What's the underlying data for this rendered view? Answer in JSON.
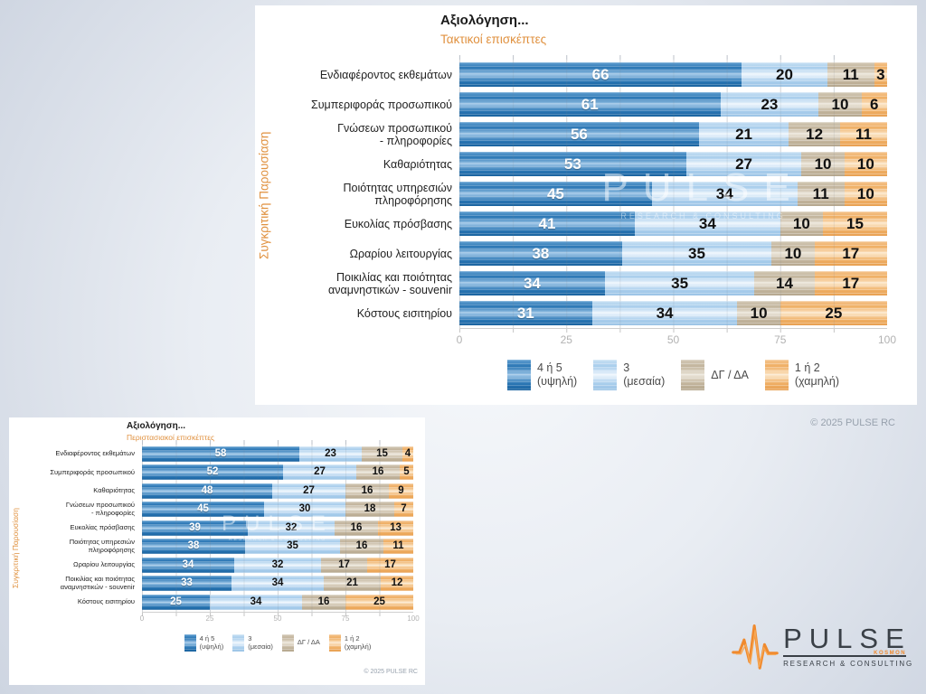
{
  "chart_data": [
    {
      "type": "bar",
      "orientation": "horizontal-stacked",
      "title": "Αξιολόγηση...",
      "subtitle": "Τακτικοί επισκέπτες",
      "side_label": "Συγκριτική Παρουσίαση",
      "categories": [
        "Ενδιαφέροντος εκθεμάτων",
        "Συμπεριφοράς προσωπικού",
        "Γνώσεων προσωπικού\n- πληροφορίες",
        "Καθαριότητας",
        "Ποιότητας υπηρεσιών\nπληροφόρησης",
        "Ευκολίας πρόσβασης",
        "Ωραρίου λειτουργίας",
        "Ποικιλίας και ποιότητας\nαναμνηστικών - souvenir",
        "Κόστους εισιτηρίου"
      ],
      "series": [
        {
          "name": "4 ή 5 (υψηλή)",
          "values": [
            66,
            61,
            56,
            53,
            45,
            41,
            38,
            34,
            31
          ]
        },
        {
          "name": "3 (μεσαία)",
          "values": [
            20,
            23,
            21,
            27,
            34,
            34,
            35,
            35,
            34
          ]
        },
        {
          "name": "ΔΓ / ΔΑ",
          "values": [
            11,
            10,
            12,
            10,
            11,
            10,
            10,
            14,
            10
          ]
        },
        {
          "name": "1 ή 2 (χαμηλή)",
          "values": [
            3,
            6,
            11,
            10,
            10,
            15,
            17,
            17,
            25
          ]
        }
      ],
      "xlim": [
        0,
        100
      ],
      "x_ticks": [
        "0",
        "25",
        "50",
        "75",
        "100"
      ],
      "legend": [
        {
          "line1": "4 ή 5",
          "line2": "(υψηλή)"
        },
        {
          "line1": "3",
          "line2": "(μεσαία)"
        },
        {
          "line1": "ΔΓ / ΔΑ",
          "line2": ""
        },
        {
          "line1": "1 ή 2",
          "line2": "(χαμηλή)"
        }
      ],
      "watermark": {
        "line1": "PULSE",
        "line2": "RESEARCH & CONSULTING"
      },
      "copyright": "© 2025 PULSE RC"
    },
    {
      "type": "bar",
      "orientation": "horizontal-stacked",
      "title": "Αξιολόγηση...",
      "subtitle": "Περιστασιακοί επισκέπτες",
      "side_label": "Συγκριτική Παρουσίαση",
      "categories": [
        "Ενδιαφέροντος εκθεμάτων",
        "Συμπεριφοράς προσωπικού",
        "Καθαριότητας",
        "Γνώσεων προσωπικού\n- πληροφορίες",
        "Ευκολίας πρόσβασης",
        "Ποιότητας υπηρεσιών\nπληροφόρησης",
        "Ωραρίου λειτουργίας",
        "Ποικιλίας και ποιότητας\nαναμνηστικών - souvenir",
        "Κόστους εισιτηρίου"
      ],
      "series": [
        {
          "name": "4 ή 5 (υψηλή)",
          "values": [
            58,
            52,
            48,
            45,
            39,
            38,
            34,
            33,
            25
          ]
        },
        {
          "name": "3 (μεσαία)",
          "values": [
            23,
            27,
            27,
            30,
            32,
            35,
            32,
            34,
            34
          ]
        },
        {
          "name": "ΔΓ / ΔΑ",
          "values": [
            15,
            16,
            16,
            18,
            16,
            16,
            17,
            21,
            16
          ]
        },
        {
          "name": "1 ή 2 (χαμηλή)",
          "values": [
            4,
            5,
            9,
            7,
            13,
            11,
            17,
            12,
            25
          ]
        }
      ],
      "xlim": [
        0,
        100
      ],
      "x_ticks": [
        "0",
        "25",
        "50",
        "75",
        "100"
      ],
      "legend": [
        {
          "line1": "4 ή 5",
          "line2": "(υψηλή)"
        },
        {
          "line1": "3",
          "line2": "(μεσαία)"
        },
        {
          "line1": "ΔΓ / ΔΑ",
          "line2": ""
        },
        {
          "line1": "1 ή 2",
          "line2": "(χαμηλή)"
        }
      ],
      "watermark": {
        "line1": "PULSE",
        "line2": "RESEARCH & CONSULTING"
      },
      "copyright": "© 2025 PULSE RC"
    }
  ],
  "colors": {
    "series": [
      "#2a76b4",
      "#a8cdec",
      "#c2b49c",
      "#efae63"
    ],
    "subtitle_orange": "#e0913f",
    "logo_orange": "#f08a2e"
  },
  "logo": {
    "brand": "PULSE",
    "sub_brand": "KOSMON",
    "tagline": "RESEARCH & CONSULTING"
  }
}
